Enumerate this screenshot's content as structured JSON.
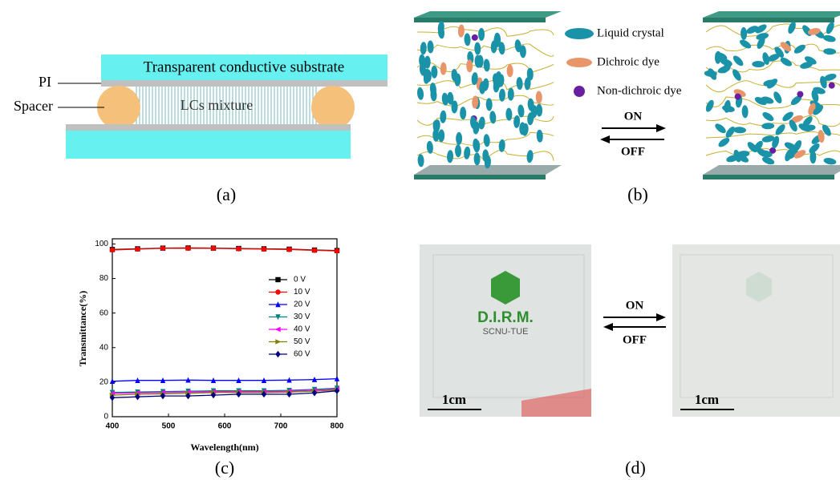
{
  "panel_labels": [
    "(a)",
    "(b)",
    "(c)",
    "(d)"
  ],
  "panel_a": {
    "substrate": "Transparent conductive substrate",
    "pi": "PI",
    "spacer": "Spacer",
    "mixture": "LCs mixture"
  },
  "panel_b": {
    "legend": [
      "Liquid crystal",
      "Dichroic dye",
      "Non-dichroic dye"
    ],
    "on": "ON",
    "off": "OFF"
  },
  "panel_d": {
    "logo": "D.I.R.M.",
    "logo_sub": "SCNU-TUE",
    "scale": [
      "1cm",
      "1cm"
    ],
    "on": "ON",
    "off": "OFF"
  },
  "chart_data": {
    "type": "line",
    "x_label": "Wavelength(nm)",
    "y_label": "Transmittance(%)",
    "x": [
      400,
      445,
      490,
      535,
      580,
      625,
      670,
      715,
      760,
      800
    ],
    "series": [
      {
        "name": "0 V",
        "color": "#000000",
        "marker": "square",
        "values": [
          96.8,
          97.2,
          97.6,
          97.7,
          97.6,
          97.4,
          97.2,
          97,
          96.5,
          96.2
        ]
      },
      {
        "name": "10 V",
        "color": "#ff0000",
        "marker": "circle",
        "values": [
          96.5,
          97,
          97.5,
          97.5,
          97.5,
          97.2,
          97,
          96.8,
          96.3,
          96
        ]
      },
      {
        "name": "20 V",
        "color": "#0000ff",
        "marker": "triangle-up",
        "values": [
          20.5,
          21,
          21,
          21.2,
          21,
          21,
          21,
          21.2,
          21.5,
          22
        ]
      },
      {
        "name": "30 V",
        "color": "#008080",
        "marker": "triangle-down",
        "values": [
          14,
          14.3,
          14.5,
          14.8,
          15,
          15,
          15,
          15.2,
          15.8,
          16.5
        ]
      },
      {
        "name": "40 V",
        "color": "#ff00ff",
        "marker": "triangle-left",
        "values": [
          13.5,
          13.8,
          14,
          14.2,
          14.5,
          14.5,
          14.5,
          14.8,
          15.3,
          16
        ]
      },
      {
        "name": "50 V",
        "color": "#808000",
        "marker": "triangle-right",
        "values": [
          12.5,
          13,
          13.2,
          13.5,
          14,
          14,
          14,
          14.2,
          14.8,
          15.5
        ]
      },
      {
        "name": "60 V",
        "color": "#000080",
        "marker": "diamond",
        "values": [
          11,
          11.5,
          12,
          12,
          12.5,
          13,
          13,
          13,
          13.8,
          15
        ]
      }
    ],
    "xlim": [
      400,
      800
    ],
    "ylim": [
      0,
      103
    ],
    "xticks": [
      400,
      500,
      600,
      700,
      800
    ],
    "yticks": [
      0,
      20,
      40,
      60,
      80,
      100
    ]
  }
}
